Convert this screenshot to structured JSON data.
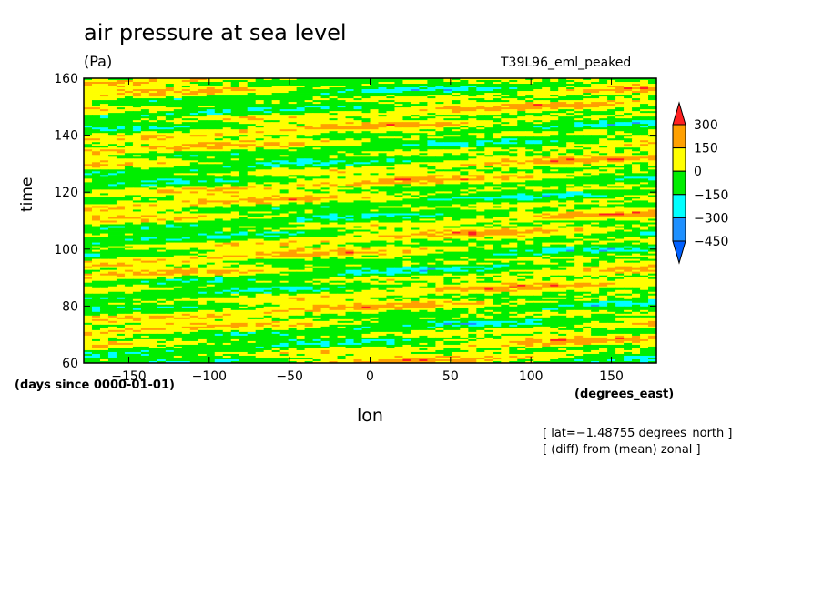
{
  "chart_data": {
    "type": "heatmap",
    "title": "air pressure at sea level",
    "units": "(Pa)",
    "run_label": "T39L96_eml_peaked",
    "xlabel": "lon",
    "ylabel": "time",
    "x_units": "(degrees_east)",
    "y_units": "(days since 0000-01-01)",
    "notes": [
      "[ lat=−1.48755 degrees_north ]",
      "[ (diff) from (mean) zonal ]"
    ],
    "xlim": [
      -178,
      178
    ],
    "ylim": [
      60,
      160
    ],
    "x_ticks": [
      -150,
      -100,
      -50,
      0,
      50,
      100,
      150
    ],
    "x_tick_labels": [
      "−150",
      "−100",
      "−50",
      "0",
      "50",
      "100",
      "150"
    ],
    "y_ticks": [
      60,
      80,
      100,
      120,
      140,
      160
    ],
    "y_tick_labels": [
      "60",
      "80",
      "100",
      "120",
      "140",
      "160"
    ],
    "colorbar": {
      "levels": [
        300,
        150,
        0,
        -150,
        -300,
        -450
      ],
      "level_labels": [
        "300",
        "150",
        "0",
        "−150",
        "−300",
        "−450"
      ],
      "colors": [
        "#ff2020",
        "#ffa000",
        "#ffff00",
        "#00ee00",
        "#00ffff",
        "#1e90ff",
        "#0060ff"
      ]
    },
    "field_description_colors": {
      "dominant": [
        "#ffff00",
        "#00ee00"
      ],
      "secondary": [
        "#ffa000",
        "#00ffff"
      ],
      "rare": [
        "#ff2020",
        "#1e90ff"
      ]
    }
  }
}
